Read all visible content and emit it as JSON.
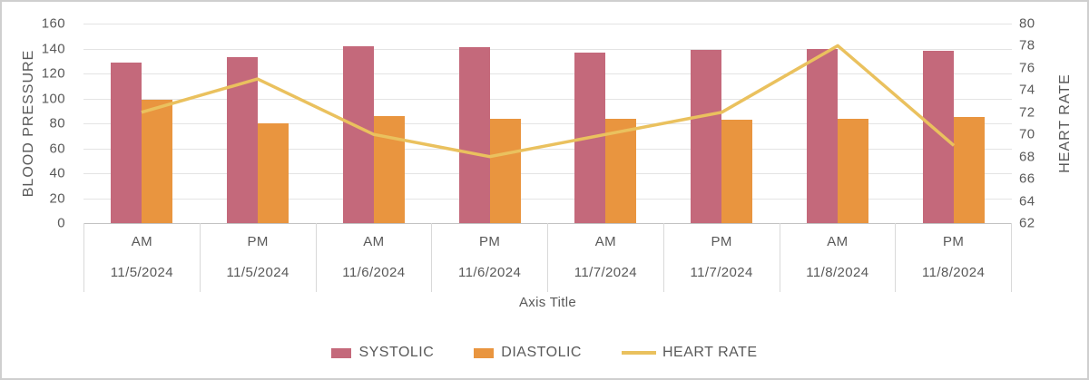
{
  "chart_data": {
    "type": "bar",
    "subtype": "combo-bar-line",
    "title": "",
    "categories_periods": [
      "AM",
      "PM",
      "AM",
      "PM",
      "AM",
      "PM",
      "AM",
      "PM"
    ],
    "categories_dates": [
      "11/5/2024",
      "11/5/2024",
      "11/6/2024",
      "11/6/2024",
      "11/7/2024",
      "11/7/2024",
      "11/8/2024",
      "11/8/2024"
    ],
    "series": [
      {
        "name": "SYSTOLIC",
        "type": "bar",
        "axis": "primary",
        "color": "#c4697b",
        "values": [
          129,
          133,
          142,
          141,
          137,
          139,
          140,
          138
        ]
      },
      {
        "name": "DIASTOLIC",
        "type": "bar",
        "axis": "primary",
        "color": "#e9953f",
        "values": [
          99,
          80,
          86,
          84,
          84,
          83,
          84,
          85
        ]
      },
      {
        "name": "HEART RATE",
        "type": "line",
        "axis": "secondary",
        "color": "#eac15e",
        "values": [
          72,
          75,
          70,
          68,
          70,
          72,
          78,
          69
        ]
      }
    ],
    "primary_axis": {
      "title": "BLOOD PRESSURE",
      "min": 0,
      "max": 160,
      "step": 20
    },
    "secondary_axis": {
      "title": "HEART RATE",
      "min": 62,
      "max": 80,
      "step": 2
    },
    "x_axis_title": "Axis Title",
    "legend_position": "bottom",
    "grid": true,
    "colors": {
      "gridline": "#e4e4e4",
      "axis_line": "#c2c2c2",
      "separator": "#d9d9d9",
      "text": "#595959",
      "border": "#cfcfcf"
    }
  }
}
